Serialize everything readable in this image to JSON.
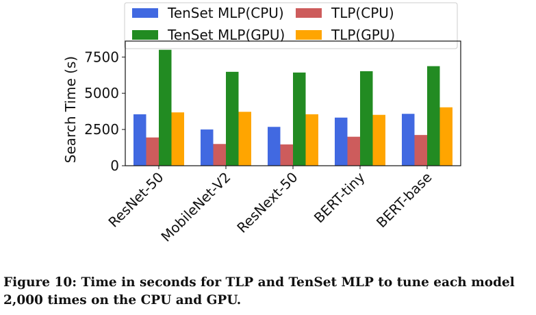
{
  "chart_data": {
    "type": "bar",
    "categories": [
      "ResNet-50",
      "MobileNet-V2",
      "ResNext-50",
      "BERT-tiny",
      "BERT-base"
    ],
    "series": [
      {
        "name": "TenSet MLP(CPU)",
        "color": "#4169e1",
        "values": [
          3550,
          2500,
          2680,
          3320,
          3580
        ]
      },
      {
        "name": "TLP(CPU)",
        "color": "#cd5c5c",
        "values": [
          1950,
          1500,
          1470,
          2000,
          2120
        ]
      },
      {
        "name": "TenSet MLP(GPU)",
        "color": "#228b22",
        "values": [
          8000,
          6480,
          6430,
          6520,
          6870
        ]
      },
      {
        "name": "TLP(GPU)",
        "color": "#ffa500",
        "values": [
          3680,
          3720,
          3550,
          3510,
          4030
        ]
      }
    ],
    "legend_order": [
      0,
      2,
      1,
      3
    ],
    "title": "",
    "xlabel": "",
    "ylabel": "Search Time (s)",
    "ylim": [
      0,
      8600
    ],
    "yticks": [
      0,
      2500,
      5000,
      7500
    ],
    "ytick_labels": [
      "0",
      "2500",
      "5000",
      "7500"
    ],
    "grid": false,
    "legend_position": "top"
  },
  "caption": "Figure 10: Time in seconds for TLP and TenSet MLP to tune each model 2,000 times on the CPU and GPU."
}
